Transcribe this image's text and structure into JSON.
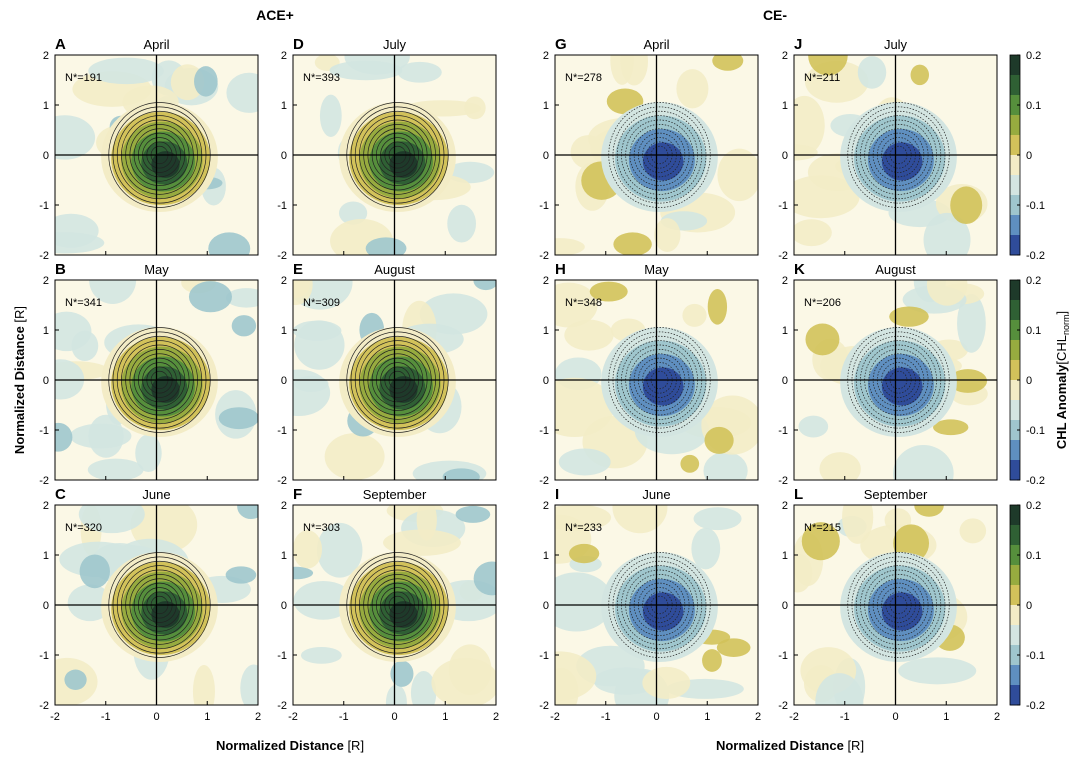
{
  "groups": [
    "ACE+",
    "CE-"
  ],
  "xlabel": "Normalized Distance",
  "xlabel_unit": "[R]",
  "ylabel": "Normalized Distance",
  "ylabel_unit": "[R]",
  "colorbar": {
    "label": "CHL Anomaly",
    "unit_open": "[CHL",
    "unit_sub": "norm",
    "unit_close": "]",
    "ylim": [
      -0.2,
      0.2
    ],
    "ticks": [
      0.2,
      0.1,
      0,
      -0.1,
      -0.2
    ],
    "colors": [
      "#1e3a2a",
      "#2f6034",
      "#568f3c",
      "#97ab3f",
      "#d2c25a",
      "#f3ecc6",
      "#d3e5e1",
      "#9fc6cd",
      "#5f8fc0",
      "#2f4c9a"
    ]
  },
  "chart_data": [
    {
      "type": "contour",
      "letter": "A",
      "title": "April",
      "annotation": "N*=191",
      "xlim": [
        -2,
        2
      ],
      "ylim": [
        -2,
        2
      ],
      "xticks": [
        -2,
        -1,
        0,
        1,
        2
      ],
      "yticks": [
        -2,
        -1,
        0,
        1,
        2
      ]
    },
    {
      "type": "contour",
      "letter": "D",
      "title": "July",
      "annotation": "N*=393",
      "xlim": [
        -2,
        2
      ],
      "ylim": [
        -2,
        2
      ],
      "xticks": [
        -2,
        -1,
        0,
        1,
        2
      ],
      "yticks": [
        -2,
        -1,
        0,
        1,
        2
      ]
    },
    {
      "type": "contour",
      "letter": "G",
      "title": "April",
      "annotation": "N*=278",
      "xlim": [
        -2,
        2
      ],
      "ylim": [
        -2,
        2
      ],
      "xticks": [
        -2,
        -1,
        0,
        1,
        2
      ],
      "yticks": [
        -2,
        -1,
        0,
        1,
        2
      ]
    },
    {
      "type": "contour",
      "letter": "J",
      "title": "July",
      "annotation": "N*=211",
      "xlim": [
        -2,
        2
      ],
      "ylim": [
        -2,
        2
      ],
      "xticks": [
        -2,
        -1,
        0,
        1,
        2
      ],
      "yticks": [
        -2,
        -1,
        0,
        1,
        2
      ]
    },
    {
      "type": "contour",
      "letter": "B",
      "title": "May",
      "annotation": "N*=341",
      "xlim": [
        -2,
        2
      ],
      "ylim": [
        -2,
        2
      ],
      "xticks": [
        -2,
        -1,
        0,
        1,
        2
      ],
      "yticks": [
        -2,
        -1,
        0,
        1,
        2
      ]
    },
    {
      "type": "contour",
      "letter": "E",
      "title": "August",
      "annotation": "N*=309",
      "xlim": [
        -2,
        2
      ],
      "ylim": [
        -2,
        2
      ],
      "xticks": [
        -2,
        -1,
        0,
        1,
        2
      ],
      "yticks": [
        -2,
        -1,
        0,
        1,
        2
      ]
    },
    {
      "type": "contour",
      "letter": "H",
      "title": "May",
      "annotation": "N*=348",
      "xlim": [
        -2,
        2
      ],
      "ylim": [
        -2,
        2
      ],
      "xticks": [
        -2,
        -1,
        0,
        1,
        2
      ],
      "yticks": [
        -2,
        -1,
        0,
        1,
        2
      ]
    },
    {
      "type": "contour",
      "letter": "K",
      "title": "August",
      "annotation": "N*=206",
      "xlim": [
        -2,
        2
      ],
      "ylim": [
        -2,
        2
      ],
      "xticks": [
        -2,
        -1,
        0,
        1,
        2
      ],
      "yticks": [
        -2,
        -1,
        0,
        1,
        2
      ]
    },
    {
      "type": "contour",
      "letter": "C",
      "title": "June",
      "annotation": "N*=320",
      "xlim": [
        -2,
        2
      ],
      "ylim": [
        -2,
        2
      ],
      "xticks": [
        -2,
        -1,
        0,
        1,
        2
      ],
      "yticks": [
        -2,
        -1,
        0,
        1,
        2
      ]
    },
    {
      "type": "contour",
      "letter": "F",
      "title": "September",
      "annotation": "N*=303",
      "xlim": [
        -2,
        2
      ],
      "ylim": [
        -2,
        2
      ],
      "xticks": [
        -2,
        -1,
        0,
        1,
        2
      ],
      "yticks": [
        -2,
        -1,
        0,
        1,
        2
      ]
    },
    {
      "type": "contour",
      "letter": "I",
      "title": "June",
      "annotation": "N*=233",
      "xlim": [
        -2,
        2
      ],
      "ylim": [
        -2,
        2
      ],
      "xticks": [
        -2,
        -1,
        0,
        1,
        2
      ],
      "yticks": [
        -2,
        -1,
        0,
        1,
        2
      ]
    },
    {
      "type": "contour",
      "letter": "L",
      "title": "September",
      "annotation": "N*=215",
      "xlim": [
        -2,
        2
      ],
      "ylim": [
        -2,
        2
      ],
      "xticks": [
        -2,
        -1,
        0,
        1,
        2
      ],
      "yticks": [
        -2,
        -1,
        0,
        1,
        2
      ]
    }
  ]
}
